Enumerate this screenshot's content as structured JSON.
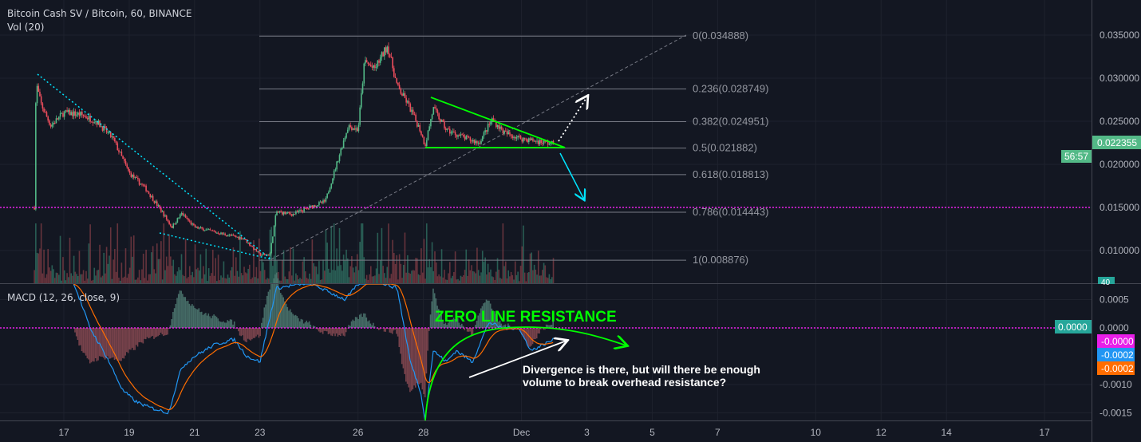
{
  "header": {
    "title": "Bitcoin Cash SV / Bitcoin, 60, BINANCE",
    "volume_label": "Vol (20)",
    "macd_label": "MACD (12, 26, close, 9)"
  },
  "badges": {
    "last_price": "0.022355",
    "countdown": "56:57",
    "volume": "40",
    "macd_zero": "0.0000",
    "macd_hist": "-0.0000",
    "macd_line": "-0.0002",
    "macd_signal": "-0.0002"
  },
  "colors": {
    "background": "#131722",
    "up": "#53b987",
    "down": "#eb4d5c",
    "macd": "#2196f3",
    "signal": "#ff6d00",
    "magenta": "#e91ee9",
    "annotation_green": "#00ff00",
    "trend_cyan": "#00e5ff"
  },
  "annotations": {
    "zero_line": "ZERO LINE RESISTANCE",
    "divergence_1": "Divergence is there, but will there be enough",
    "divergence_2": "volume to break overhead resistance?"
  },
  "chart_data": [
    {
      "type": "candlestick",
      "pane": "price",
      "timeframe": "60",
      "price_axis": {
        "ticks": [
          "0.035000",
          "0.030000",
          "0.025000",
          "0.020000",
          "0.015000",
          "0.010000"
        ],
        "range": [
          0.0065,
          0.0385
        ]
      },
      "x_axis": {
        "ticks": [
          "17",
          "19",
          "21",
          "23",
          "26",
          "28",
          "Dec",
          "3",
          "5",
          "7",
          "10",
          "12",
          "14",
          "17"
        ],
        "tick_days": [
          17,
          19,
          21,
          23,
          26,
          28,
          31,
          33,
          35,
          37,
          40,
          42,
          44,
          47
        ]
      },
      "price_path": [
        [
          16.1,
          0.015
        ],
        [
          16.15,
          0.0295
        ],
        [
          16.3,
          0.027
        ],
        [
          16.6,
          0.0245
        ],
        [
          17,
          0.026
        ],
        [
          17.5,
          0.0258
        ],
        [
          18,
          0.025
        ],
        [
          18.5,
          0.023
        ],
        [
          19,
          0.019
        ],
        [
          19.5,
          0.0172
        ],
        [
          20,
          0.0145
        ],
        [
          20.3,
          0.0127
        ],
        [
          20.6,
          0.0143
        ],
        [
          21,
          0.0127
        ],
        [
          22,
          0.0118
        ],
        [
          22.5,
          0.0114
        ],
        [
          23,
          0.0095
        ],
        [
          23.3,
          0.0095
        ],
        [
          23.5,
          0.0145
        ],
        [
          24,
          0.0142
        ],
        [
          24.5,
          0.015
        ],
        [
          25,
          0.0157
        ],
        [
          25.3,
          0.0195
        ],
        [
          25.7,
          0.0245
        ],
        [
          26,
          0.024
        ],
        [
          26.2,
          0.032
        ],
        [
          26.5,
          0.031
        ],
        [
          26.9,
          0.0338
        ],
        [
          27.2,
          0.029
        ],
        [
          27.5,
          0.0272
        ],
        [
          27.9,
          0.024
        ],
        [
          28.05,
          0.0222
        ],
        [
          28.3,
          0.0265
        ],
        [
          28.7,
          0.024
        ],
        [
          29.3,
          0.023
        ],
        [
          29.7,
          0.0225
        ],
        [
          30.1,
          0.0252
        ],
        [
          30.5,
          0.0236
        ],
        [
          31,
          0.023
        ],
        [
          32,
          0.022355
        ]
      ],
      "fib_levels": [
        {
          "label": "0(0.034888)",
          "value": 0.034888
        },
        {
          "label": "0.236(0.028749)",
          "value": 0.028749
        },
        {
          "label": "0.382(0.024951)",
          "value": 0.024951
        },
        {
          "label": "0.5(0.021882)",
          "value": 0.021882
        },
        {
          "label": "0.618(0.018813)",
          "value": 0.018813
        },
        {
          "label": "0.786(0.014443)",
          "value": 0.014443
        },
        {
          "label": "1(0.008876)",
          "value": 0.008876
        }
      ],
      "horizontal_line": 0.015
    },
    {
      "type": "line",
      "pane": "macd",
      "axis": {
        "ticks": [
          "0.0005",
          "0.0000",
          "-0.0010",
          "-0.0015"
        ],
        "tick_values": [
          0.0005,
          0,
          -0.001,
          -0.0015
        ]
      },
      "macd_path": [
        [
          17.3,
          0.0008
        ],
        [
          17.8,
          0.0
        ],
        [
          18.3,
          -0.0005
        ],
        [
          18.8,
          -0.0011
        ],
        [
          19.2,
          -0.0013
        ],
        [
          19.6,
          -0.0014
        ],
        [
          20.2,
          -0.0015
        ],
        [
          20.6,
          -0.0007
        ],
        [
          21,
          -0.0005
        ],
        [
          21.6,
          -0.0003
        ],
        [
          22.2,
          -0.0002
        ],
        [
          22.6,
          -0.0005
        ],
        [
          23,
          -0.0006
        ],
        [
          23.5,
          0.0007
        ],
        [
          24.5,
          0.0008
        ],
        [
          25.6,
          0.0005
        ],
        [
          26.2,
          0.0009
        ],
        [
          27.2,
          0.0007
        ],
        [
          27.6,
          -0.0006
        ],
        [
          27.9,
          -0.0011
        ],
        [
          28.05,
          -0.0016
        ],
        [
          28.3,
          -0.0004
        ],
        [
          28.7,
          -0.0006
        ],
        [
          29,
          -0.0004
        ],
        [
          29.5,
          -0.0006
        ],
        [
          30,
          0.0001
        ],
        [
          30.4,
          0.0
        ],
        [
          30.9,
          0.0
        ],
        [
          31.3,
          -0.0004
        ],
        [
          32,
          -0.0002
        ]
      ]
    }
  ]
}
